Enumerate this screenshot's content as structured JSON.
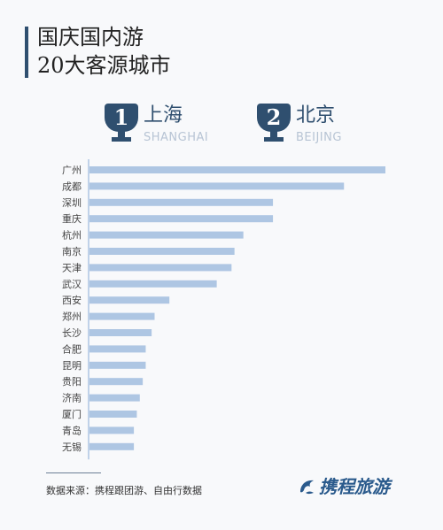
{
  "title": {
    "line1": "国庆国内游",
    "line2": "20大客源城市"
  },
  "top_ranks": [
    {
      "rank": "1",
      "city_cn": "上海",
      "city_en": "SHANGHAI"
    },
    {
      "rank": "2",
      "city_cn": "北京",
      "city_en": "BEIJING"
    }
  ],
  "chart_data": {
    "type": "bar",
    "orientation": "horizontal",
    "categories": [
      "广州",
      "成都",
      "深圳",
      "重庆",
      "杭州",
      "南京",
      "天津",
      "武汉",
      "西安",
      "郑州",
      "长沙",
      "合肥",
      "昆明",
      "贵阳",
      "济南",
      "厦门",
      "青岛",
      "无锡"
    ],
    "values": [
      100,
      86,
      62,
      62,
      52,
      49,
      48,
      43,
      27,
      22,
      21,
      19,
      19,
      18,
      17,
      16,
      15,
      15
    ],
    "grid": false,
    "legend": "none"
  },
  "footer": {
    "source": "数据来源：携程跟团游、自由行数据",
    "logo_text": "携程旅游"
  },
  "colors": {
    "bar": "#aec6e3",
    "axis": "#aec6e3",
    "accent": "#2f4f6f",
    "logo": "#2a5a8c"
  },
  "icons": {
    "trophy": "trophy-icon",
    "logo": "dolphin-logo-icon"
  }
}
